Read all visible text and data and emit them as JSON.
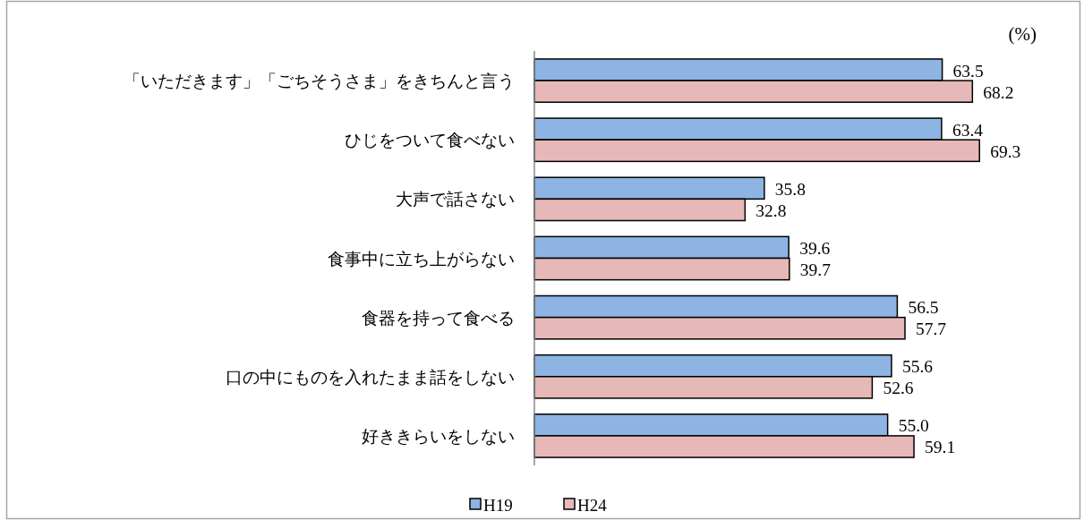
{
  "chart_data": {
    "type": "bar",
    "orientation": "horizontal",
    "categories": [
      "「いただきます」「ごちそうさま」をきちんと言う",
      "ひじをついて食べない",
      "大声で話さない",
      "食事中に立ち上がらない",
      "食器を持って食べる",
      "口の中にものを入れたまま話をしない",
      "好ききらいをしない"
    ],
    "series": [
      {
        "name": "H19",
        "color": "#8db4e2",
        "values": [
          63.5,
          63.4,
          35.8,
          39.6,
          56.5,
          55.6,
          55.0
        ],
        "value_labels": [
          "63.5",
          "63.4",
          "35.8",
          "39.6",
          "56.5",
          "55.6",
          "55.0"
        ]
      },
      {
        "name": "H24",
        "color": "#e6b9b8",
        "values": [
          68.2,
          69.3,
          32.8,
          39.7,
          57.7,
          52.6,
          59.1
        ],
        "value_labels": [
          "68.2",
          "69.3",
          "32.8",
          "39.7",
          "57.7",
          "52.6",
          "59.1"
        ]
      }
    ],
    "legend": "bottom",
    "annotations": [
      "(%)"
    ]
  }
}
